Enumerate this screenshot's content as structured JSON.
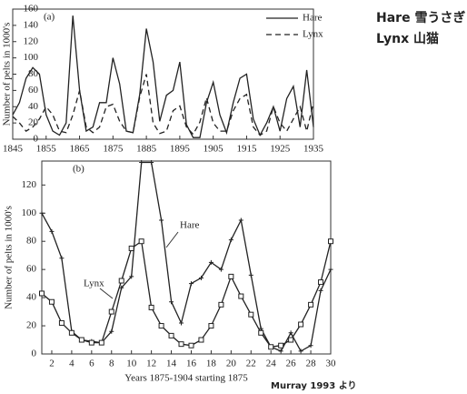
{
  "chart_data": [
    {
      "type": "line",
      "panel": "(a)",
      "ylabel": "Number of pelts in 1000's",
      "x": [
        1845,
        1847,
        1849,
        1851,
        1853,
        1855,
        1857,
        1859,
        1861,
        1863,
        1865,
        1867,
        1869,
        1871,
        1873,
        1875,
        1877,
        1879,
        1881,
        1883,
        1885,
        1887,
        1889,
        1891,
        1893,
        1895,
        1897,
        1899,
        1901,
        1903,
        1905,
        1907,
        1909,
        1911,
        1913,
        1915,
        1917,
        1919,
        1921,
        1923,
        1925,
        1927,
        1929,
        1931,
        1933,
        1935
      ],
      "series": [
        {
          "name": "Hare",
          "color": "#222222",
          "line_style": "solid",
          "values": [
            30,
            45,
            75,
            88,
            80,
            30,
            10,
            5,
            20,
            152,
            60,
            10,
            15,
            45,
            45,
            100,
            68,
            10,
            8,
            55,
            136,
            95,
            22,
            54,
            60,
            95,
            18,
            2,
            2,
            45,
            70,
            30,
            8,
            45,
            75,
            80,
            25,
            5,
            20,
            40,
            10,
            50,
            65,
            15,
            85,
            15
          ]
        },
        {
          "name": "Lynx",
          "color": "#222222",
          "line_style": "dashed",
          "values": [
            28,
            20,
            10,
            15,
            25,
            40,
            30,
            10,
            8,
            30,
            60,
            15,
            8,
            15,
            40,
            43,
            22,
            10,
            8,
            52,
            80,
            20,
            7,
            10,
            35,
            41,
            15,
            6,
            21,
            51,
            20,
            10,
            10,
            35,
            50,
            55,
            15,
            5,
            10,
            40,
            20,
            10,
            25,
            40,
            10,
            45
          ]
        }
      ],
      "xlim": [
        1845,
        1935
      ],
      "xticks": [
        1845,
        1855,
        1865,
        1875,
        1885,
        1895,
        1905,
        1915,
        1925,
        1935
      ],
      "ylim": [
        0,
        160
      ],
      "yticks": [
        0,
        20,
        40,
        60,
        80,
        100,
        120,
        140,
        160
      ],
      "legend": "upper right"
    },
    {
      "type": "line",
      "panel": "(b)",
      "ylabel": "Number of pelts in 1000's",
      "xlabel": "Years 1875-1904 starting 1875",
      "x": [
        1,
        2,
        3,
        4,
        5,
        6,
        7,
        8,
        9,
        10,
        11,
        12,
        13,
        14,
        15,
        16,
        17,
        18,
        19,
        20,
        21,
        22,
        23,
        24,
        25,
        26,
        27,
        28,
        29,
        30
      ],
      "series": [
        {
          "name": "Hare",
          "color": "#222222",
          "marker": "plus",
          "values": [
            100,
            87,
            68,
            16,
            10,
            9,
            8,
            16,
            47,
            55,
            136,
            136,
            95,
            37,
            22,
            50,
            54,
            65,
            60,
            81,
            95,
            56,
            18,
            5,
            2,
            15,
            2,
            6,
            45,
            60
          ]
        },
        {
          "name": "Lynx",
          "color": "#222222",
          "marker": "square",
          "values": [
            43,
            37,
            22,
            15,
            10,
            8,
            8,
            30,
            52,
            75,
            80,
            33,
            20,
            13,
            7,
            6,
            10,
            20,
            35,
            55,
            41,
            28,
            15,
            5,
            6,
            10,
            21,
            35,
            51,
            80
          ]
        }
      ],
      "xlim": [
        1,
        30
      ],
      "xticks": [
        2,
        4,
        6,
        8,
        10,
        12,
        14,
        16,
        18,
        20,
        22,
        24,
        26,
        28,
        30
      ],
      "ylim": [
        0,
        137
      ],
      "yticks": [
        0,
        20,
        40,
        60,
        80,
        100,
        120
      ]
    }
  ],
  "side_labels": [
    "Hare 雪うさぎ",
    "Lynx 山猫"
  ],
  "source": "Murray 1993 より"
}
